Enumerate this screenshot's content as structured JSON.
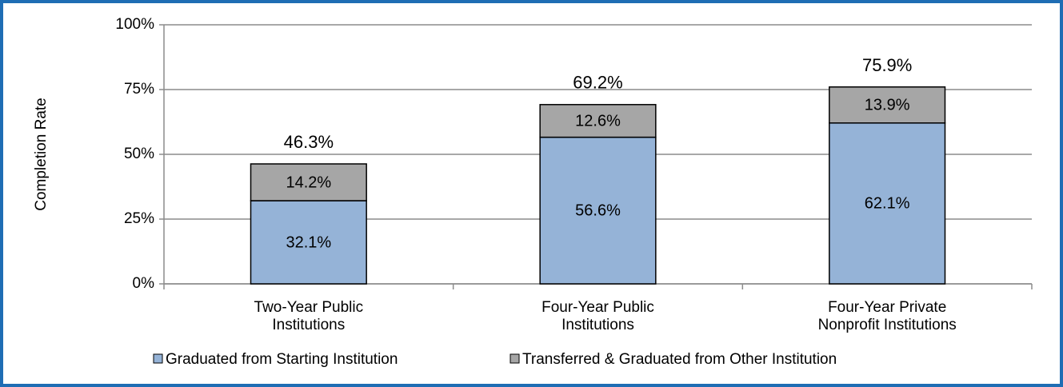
{
  "chart_data": {
    "type": "stacked-bar",
    "ylabel": "Completion Rate",
    "categories": [
      [
        "Two-Year Public",
        "Institutions"
      ],
      [
        "Four-Year Public",
        "Institutions"
      ],
      [
        "Four-Year Private",
        "Nonprofit Institutions"
      ]
    ],
    "series": [
      {
        "name": "Graduated from Starting Institution",
        "color": "#95b3d7",
        "values": [
          32.1,
          56.6,
          62.1
        ],
        "value_labels": [
          "32.1%",
          "56.6%",
          "62.1%"
        ]
      },
      {
        "name": "Transferred & Graduated from Other Institution",
        "color": "#a6a6a6",
        "values": [
          14.2,
          12.6,
          13.9
        ],
        "value_labels": [
          "14.2%",
          "12.6%",
          "13.9%"
        ]
      }
    ],
    "totals": [
      46.3,
      69.2,
      75.9
    ],
    "total_labels": [
      "46.3%",
      "69.2%",
      "75.9%"
    ],
    "ylim": [
      0,
      100
    ],
    "yticks": [
      {
        "value": 0,
        "label": "0%"
      },
      {
        "value": 25,
        "label": "25%"
      },
      {
        "value": 50,
        "label": "50%"
      },
      {
        "value": 75,
        "label": "75%"
      },
      {
        "value": 100,
        "label": "100%"
      }
    ],
    "grid": true,
    "legend": "bottom"
  }
}
